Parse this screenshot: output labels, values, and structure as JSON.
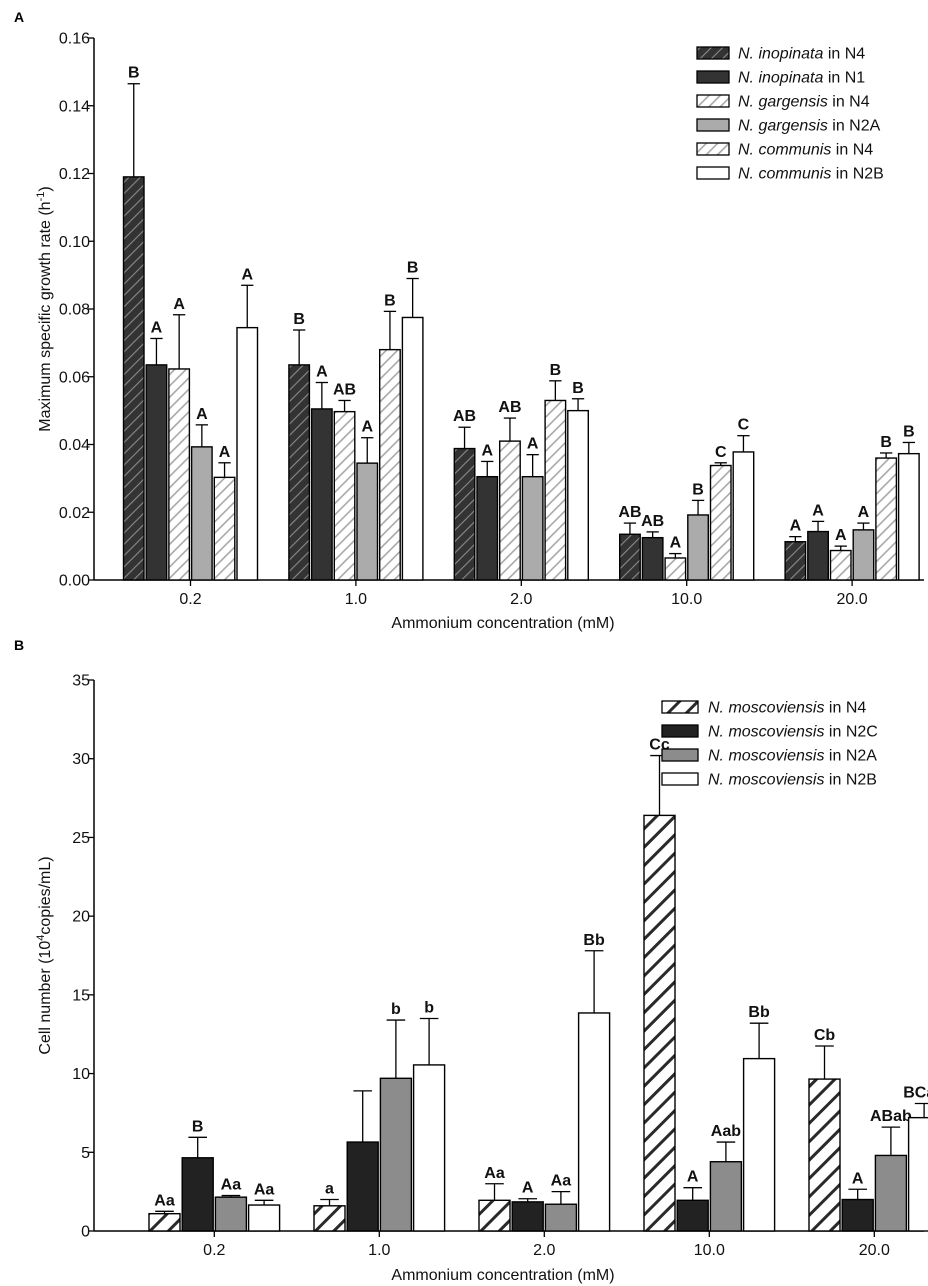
{
  "colors": {
    "axis": "#000000",
    "dark": "#333333",
    "darker": "#222222",
    "mid": "#8c8c8c",
    "light": "#ababab",
    "white": "#ffffff"
  },
  "chart_data": [
    {
      "panel": "A",
      "type": "bar",
      "xlabel": "Ammonium concentration (mM)",
      "ylabel_prefix": "Maximum specific growth rate (h",
      "ylabel_sup": "-1",
      "ylabel_suffix": ")",
      "ylim": [
        0,
        0.16
      ],
      "yticks": [
        "0.00",
        "0.02",
        "0.04",
        "0.06",
        "0.08",
        "0.10",
        "0.12",
        "0.14",
        "0.16"
      ],
      "categories": [
        "0.2",
        "1.0",
        "2.0",
        "10.0",
        "20.0"
      ],
      "legend_position": "top-right",
      "series": [
        {
          "italic": "N. inopinata",
          "rest": " in N4",
          "fill": "hatch-dark",
          "values": [
            0.119,
            0.0635,
            0.0388,
            0.0135,
            0.0113
          ],
          "errors": [
            0.0275,
            0.0103,
            0.0063,
            0.0033,
            0.0015
          ],
          "labels": [
            "B",
            "B",
            "AB",
            "AB",
            "A"
          ]
        },
        {
          "italic": "N. inopinata",
          "rest": " in N1",
          "fill": "solid-dark",
          "values": [
            0.0635,
            0.0505,
            0.0305,
            0.0125,
            0.0143
          ],
          "errors": [
            0.0078,
            0.0078,
            0.0045,
            0.0017,
            0.003
          ],
          "labels": [
            "A",
            "A",
            "A",
            "AB",
            "A"
          ]
        },
        {
          "italic": "N. gargensis",
          "rest": " in N4",
          "fill": "hatch-light",
          "values": [
            0.0623,
            0.0497,
            0.041,
            0.0065,
            0.0087
          ],
          "errors": [
            0.016,
            0.0033,
            0.0068,
            0.0013,
            0.0013
          ],
          "labels": [
            "A",
            "AB",
            "AB",
            "A",
            "A"
          ]
        },
        {
          "italic": "N. gargensis",
          "rest": " in N2A",
          "fill": "solid-light",
          "values": [
            0.0393,
            0.0345,
            0.0305,
            0.0192,
            0.0148
          ],
          "errors": [
            0.0065,
            0.0075,
            0.0065,
            0.0043,
            0.002
          ],
          "labels": [
            "A",
            "A",
            "A",
            "B",
            "A"
          ]
        },
        {
          "italic": "N. communis",
          "rest": " in N4",
          "fill": "hatch-light",
          "values": [
            0.0303,
            0.068,
            0.053,
            0.0338,
            0.036
          ],
          "errors": [
            0.0043,
            0.0113,
            0.0058,
            0.0008,
            0.0015
          ],
          "labels": [
            "A",
            "B",
            "B",
            "C",
            "B"
          ]
        },
        {
          "italic": "N. communis",
          "rest": " in N2B",
          "fill": "white",
          "values": [
            0.0745,
            0.0775,
            0.05,
            0.0378,
            0.0373
          ],
          "errors": [
            0.0125,
            0.0115,
            0.0035,
            0.0048,
            0.0033
          ],
          "labels": [
            "A",
            "B",
            "B",
            "C",
            "B"
          ]
        }
      ]
    },
    {
      "panel": "B",
      "type": "bar",
      "xlabel": "Ammonium concentration (mM)",
      "ylabel_prefix": "Cell number (10",
      "ylabel_sup": "4",
      "ylabel_suffix": "copies/mL)",
      "ylim": [
        0,
        35
      ],
      "yticks": [
        "0",
        "5",
        "10",
        "15",
        "20",
        "25",
        "30",
        "35"
      ],
      "categories": [
        "0.2",
        "1.0",
        "2.0",
        "10.0",
        "20.0"
      ],
      "legend_position": "top-right",
      "series": [
        {
          "italic": "N. moscoviensis",
          "rest": " in N4",
          "fill": "hatch-dark",
          "values": [
            1.1,
            1.6,
            1.95,
            26.4,
            9.65
          ],
          "errors": [
            0.15,
            0.4,
            1.05,
            3.8,
            2.1
          ],
          "labels": [
            "Aa",
            "a",
            "Aa",
            "Cc",
            "Cb"
          ]
        },
        {
          "italic": "N. moscoviensis",
          "rest": " in N2C",
          "fill": "solid-darker",
          "values": [
            4.65,
            5.65,
            1.85,
            1.95,
            2.0
          ],
          "errors": [
            1.3,
            3.25,
            0.2,
            0.8,
            0.65
          ],
          "labels": [
            "B",
            "",
            "A",
            "A",
            "A"
          ]
        },
        {
          "italic": "N. moscoviensis",
          "rest": " in N2A",
          "fill": "solid-mid",
          "values": [
            2.15,
            9.7,
            1.7,
            4.4,
            4.8
          ],
          "errors": [
            0.1,
            3.7,
            0.8,
            1.25,
            1.8
          ],
          "labels": [
            "Aa",
            "b",
            "Aa",
            "Aab",
            "ABab"
          ]
        },
        {
          "italic": "N. moscoviensis",
          "rest": " in N2B",
          "fill": "white",
          "values": [
            1.65,
            10.55,
            13.85,
            10.95,
            7.2
          ],
          "errors": [
            0.3,
            2.95,
            3.95,
            2.25,
            0.9
          ],
          "labels": [
            "Aa",
            "b",
            "Bb",
            "Bb",
            "BCab"
          ]
        }
      ]
    }
  ]
}
